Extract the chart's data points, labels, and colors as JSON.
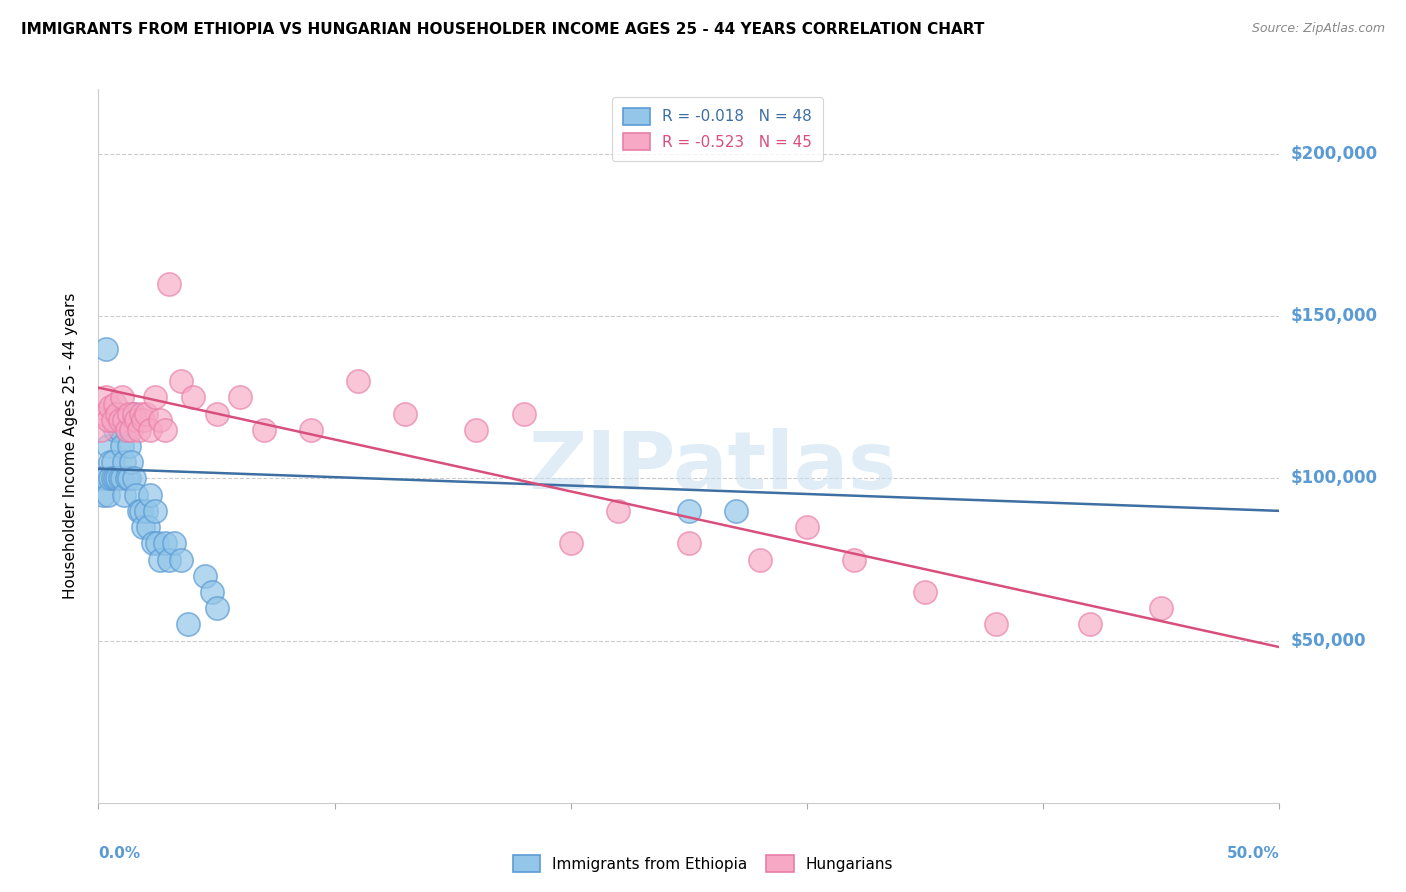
{
  "title": "IMMIGRANTS FROM ETHIOPIA VS HUNGARIAN HOUSEHOLDER INCOME AGES 25 - 44 YEARS CORRELATION CHART",
  "source": "Source: ZipAtlas.com",
  "ylabel": "Householder Income Ages 25 - 44 years",
  "ytick_values": [
    200000,
    150000,
    100000,
    50000
  ],
  "ymin": 0,
  "ymax": 220000,
  "xmin": 0.0,
  "xmax": 0.5,
  "blue_color": "#93c6e8",
  "pink_color": "#f7a8c4",
  "blue_edge_color": "#5b9bd5",
  "pink_edge_color": "#e87da8",
  "blue_line_color": "#3e6fa3",
  "pink_line_color": "#d94f7c",
  "scatter_blue_x": [
    0.001,
    0.002,
    0.003,
    0.003,
    0.004,
    0.004,
    0.005,
    0.005,
    0.006,
    0.006,
    0.007,
    0.007,
    0.008,
    0.008,
    0.009,
    0.009,
    0.01,
    0.01,
    0.011,
    0.011,
    0.012,
    0.012,
    0.013,
    0.013,
    0.014,
    0.015,
    0.015,
    0.016,
    0.017,
    0.018,
    0.019,
    0.02,
    0.021,
    0.022,
    0.023,
    0.024,
    0.025,
    0.026,
    0.028,
    0.03,
    0.032,
    0.035,
    0.038,
    0.045,
    0.048,
    0.05,
    0.25,
    0.27
  ],
  "scatter_blue_y": [
    100000,
    95000,
    140000,
    100000,
    95000,
    110000,
    105000,
    100000,
    105000,
    100000,
    115000,
    100000,
    120000,
    100000,
    115000,
    100000,
    110000,
    100000,
    105000,
    95000,
    115000,
    100000,
    110000,
    100000,
    105000,
    120000,
    100000,
    95000,
    90000,
    90000,
    85000,
    90000,
    85000,
    95000,
    80000,
    90000,
    80000,
    75000,
    80000,
    75000,
    80000,
    75000,
    55000,
    70000,
    65000,
    60000,
    90000,
    90000
  ],
  "scatter_pink_x": [
    0.001,
    0.002,
    0.003,
    0.004,
    0.005,
    0.006,
    0.007,
    0.008,
    0.009,
    0.01,
    0.011,
    0.012,
    0.013,
    0.014,
    0.015,
    0.016,
    0.017,
    0.018,
    0.019,
    0.02,
    0.022,
    0.024,
    0.026,
    0.028,
    0.03,
    0.035,
    0.04,
    0.05,
    0.06,
    0.07,
    0.09,
    0.11,
    0.13,
    0.16,
    0.18,
    0.2,
    0.22,
    0.25,
    0.28,
    0.3,
    0.32,
    0.35,
    0.38,
    0.42,
    0.45
  ],
  "scatter_pink_y": [
    115000,
    120000,
    125000,
    118000,
    122000,
    118000,
    123000,
    120000,
    118000,
    125000,
    118000,
    115000,
    120000,
    115000,
    120000,
    118000,
    115000,
    120000,
    118000,
    120000,
    115000,
    125000,
    118000,
    115000,
    160000,
    130000,
    125000,
    120000,
    125000,
    115000,
    115000,
    130000,
    120000,
    115000,
    120000,
    80000,
    90000,
    80000,
    75000,
    85000,
    75000,
    65000,
    55000,
    55000,
    60000
  ],
  "blue_trend_x": [
    0.0,
    0.5
  ],
  "blue_trend_y": [
    103000,
    90000
  ],
  "pink_trend_x": [
    0.0,
    0.5
  ],
  "pink_trend_y": [
    128000,
    48000
  ],
  "watermark": "ZIPatlas",
  "grid_color": "#cccccc",
  "title_fontsize": 11,
  "axis_label_color": "#5b9bd5",
  "tick_label_color": "#5b9bd5"
}
